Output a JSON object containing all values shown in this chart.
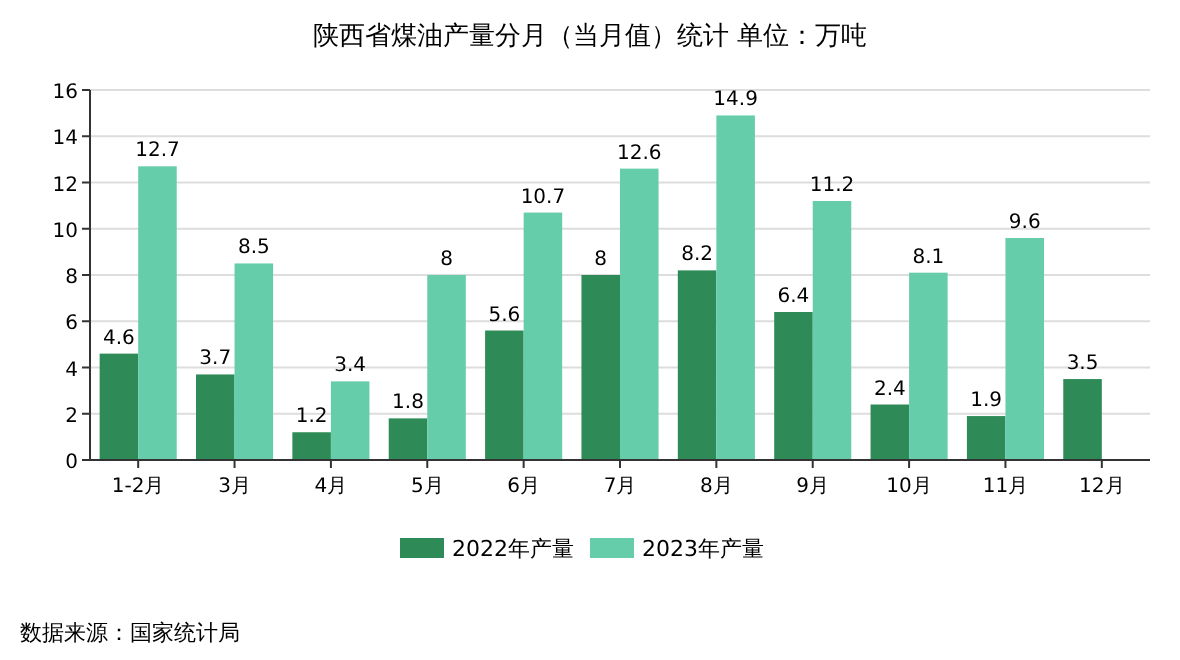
{
  "chart_data": {
    "type": "bar",
    "title": "陕西省煤油产量分月（当月值）统计  单位：万吨",
    "categories": [
      "1-2月",
      "3月",
      "4月",
      "5月",
      "6月",
      "7月",
      "8月",
      "9月",
      "10月",
      "11月",
      "12月"
    ],
    "series": [
      {
        "name": "2022年产量",
        "color": "#2e8b57",
        "values": [
          4.6,
          3.7,
          1.2,
          1.8,
          5.6,
          8,
          8.2,
          6.4,
          2.4,
          1.9,
          3.5
        ]
      },
      {
        "name": "2023年产量",
        "color": "#66cdaa",
        "values": [
          12.7,
          8.5,
          3.4,
          8,
          10.7,
          12.6,
          14.9,
          11.2,
          8.1,
          9.6,
          null
        ]
      }
    ],
    "ylim": [
      0,
      16
    ],
    "yticks": [
      0,
      2,
      4,
      6,
      8,
      10,
      12,
      14,
      16
    ],
    "grid": "y",
    "legend": "bottom",
    "data_labels": true,
    "annotations": [
      "数据来源：国家统计局"
    ]
  }
}
